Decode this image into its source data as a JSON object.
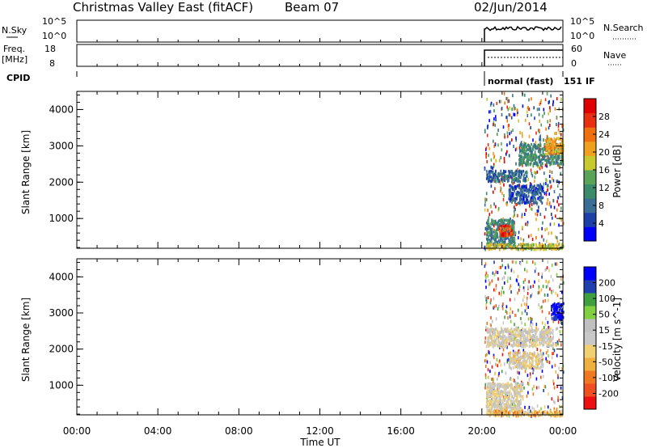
{
  "header": {
    "station": "Christmas Valley East (fitACF)",
    "beam": "Beam 07",
    "date": "02/Jun/2014"
  },
  "side_labels": {
    "nsky": "N.Sky",
    "nsky_ticks": [
      "10^5",
      "10^0"
    ],
    "freq": "Freq.",
    "freq_unit": "[MHz]",
    "freq_ticks": [
      "18",
      "8"
    ],
    "cpid": "CPID",
    "nsearch": "N.Search",
    "nsearch_ticks": [
      "10^5",
      "10^0"
    ],
    "nave": "Nave",
    "nave_ticks": [
      "60",
      "0"
    ],
    "cpid_text": "normal (fast)",
    "cpid_number": "151",
    "cpid_suffix": "IF"
  },
  "colors": {
    "power_scale": [
      "#0000ff",
      "#1c3fa8",
      "#3a6d96",
      "#3c8a6c",
      "#5aa45a",
      "#c8c830",
      "#f0a020",
      "#f07010",
      "#e83010",
      "#e00000"
    ],
    "velocity_scale": [
      "#ee1010",
      "#f05020",
      "#f07820",
      "#f0b040",
      "#f0d070",
      "#c8c8c8",
      "#c0c0c0",
      "#80d040",
      "#40a040",
      "#2040b0",
      "#0000ff"
    ]
  },
  "chart_data": [
    {
      "type": "heatmap",
      "name": "power",
      "ylabel": "Slant Range [km]",
      "xlabel": "Time UT",
      "x_ticks": [
        "00:00",
        "04:00",
        "08:00",
        "12:00",
        "16:00",
        "20:00",
        "00:00"
      ],
      "y_ticks": [
        1000,
        2000,
        3000,
        4000
      ],
      "ylim": [
        180,
        4500
      ],
      "xlim_hours": [
        0,
        24
      ],
      "data_window_hours": [
        20.1,
        24
      ],
      "colorbar_label": "Power [dB]",
      "colorbar_ticks": [
        "4",
        "8",
        "12",
        "16",
        "20",
        "24",
        "28"
      ],
      "regions": [
        {
          "t0": 20.2,
          "t1": 21.6,
          "r0": 250,
          "r1": 1000,
          "level": 0.35
        },
        {
          "t0": 20.8,
          "t1": 21.5,
          "r0": 550,
          "r1": 850,
          "level": 0.85
        },
        {
          "t0": 20.2,
          "t1": 22.2,
          "r0": 2050,
          "r1": 2350,
          "level": 0.25
        },
        {
          "t0": 21.3,
          "t1": 23.0,
          "r0": 1450,
          "r1": 1950,
          "level": 0.2
        },
        {
          "t0": 21.8,
          "t1": 24.0,
          "r0": 2500,
          "r1": 3100,
          "level": 0.35
        },
        {
          "t0": 23.1,
          "t1": 24.0,
          "r0": 2800,
          "r1": 3250,
          "level": 0.65
        },
        {
          "t0": 20.2,
          "t1": 24.0,
          "r0": 180,
          "r1": 330,
          "level": 0.55
        }
      ]
    },
    {
      "type": "heatmap",
      "name": "velocity",
      "ylabel": "Slant Range [km]",
      "xlabel": "Time UT",
      "x_ticks": [
        "00:00",
        "04:00",
        "08:00",
        "12:00",
        "16:00",
        "20:00",
        "00:00"
      ],
      "y_ticks": [
        1000,
        2000,
        3000,
        4000
      ],
      "ylim": [
        180,
        4500
      ],
      "xlim_hours": [
        0,
        24
      ],
      "data_window_hours": [
        20.1,
        24
      ],
      "colorbar_label": "Velocity [m s^-1]",
      "colorbar_ticks": [
        "-200",
        "-100",
        "-50",
        "-15",
        "15",
        "50",
        "100",
        "200"
      ],
      "regions": [
        {
          "t0": 20.2,
          "t1": 22.0,
          "r0": 300,
          "r1": 1100,
          "level": 0.48
        },
        {
          "t0": 20.2,
          "t1": 23.5,
          "r0": 2100,
          "r1": 2600,
          "level": 0.5
        },
        {
          "t0": 21.3,
          "t1": 23.0,
          "r0": 1500,
          "r1": 1950,
          "level": 0.45
        },
        {
          "t0": 23.4,
          "t1": 24.0,
          "r0": 2850,
          "r1": 3300,
          "level": 0.97
        },
        {
          "t0": 20.2,
          "t1": 24.0,
          "r0": 180,
          "r1": 330,
          "level": 0.35
        }
      ]
    }
  ]
}
